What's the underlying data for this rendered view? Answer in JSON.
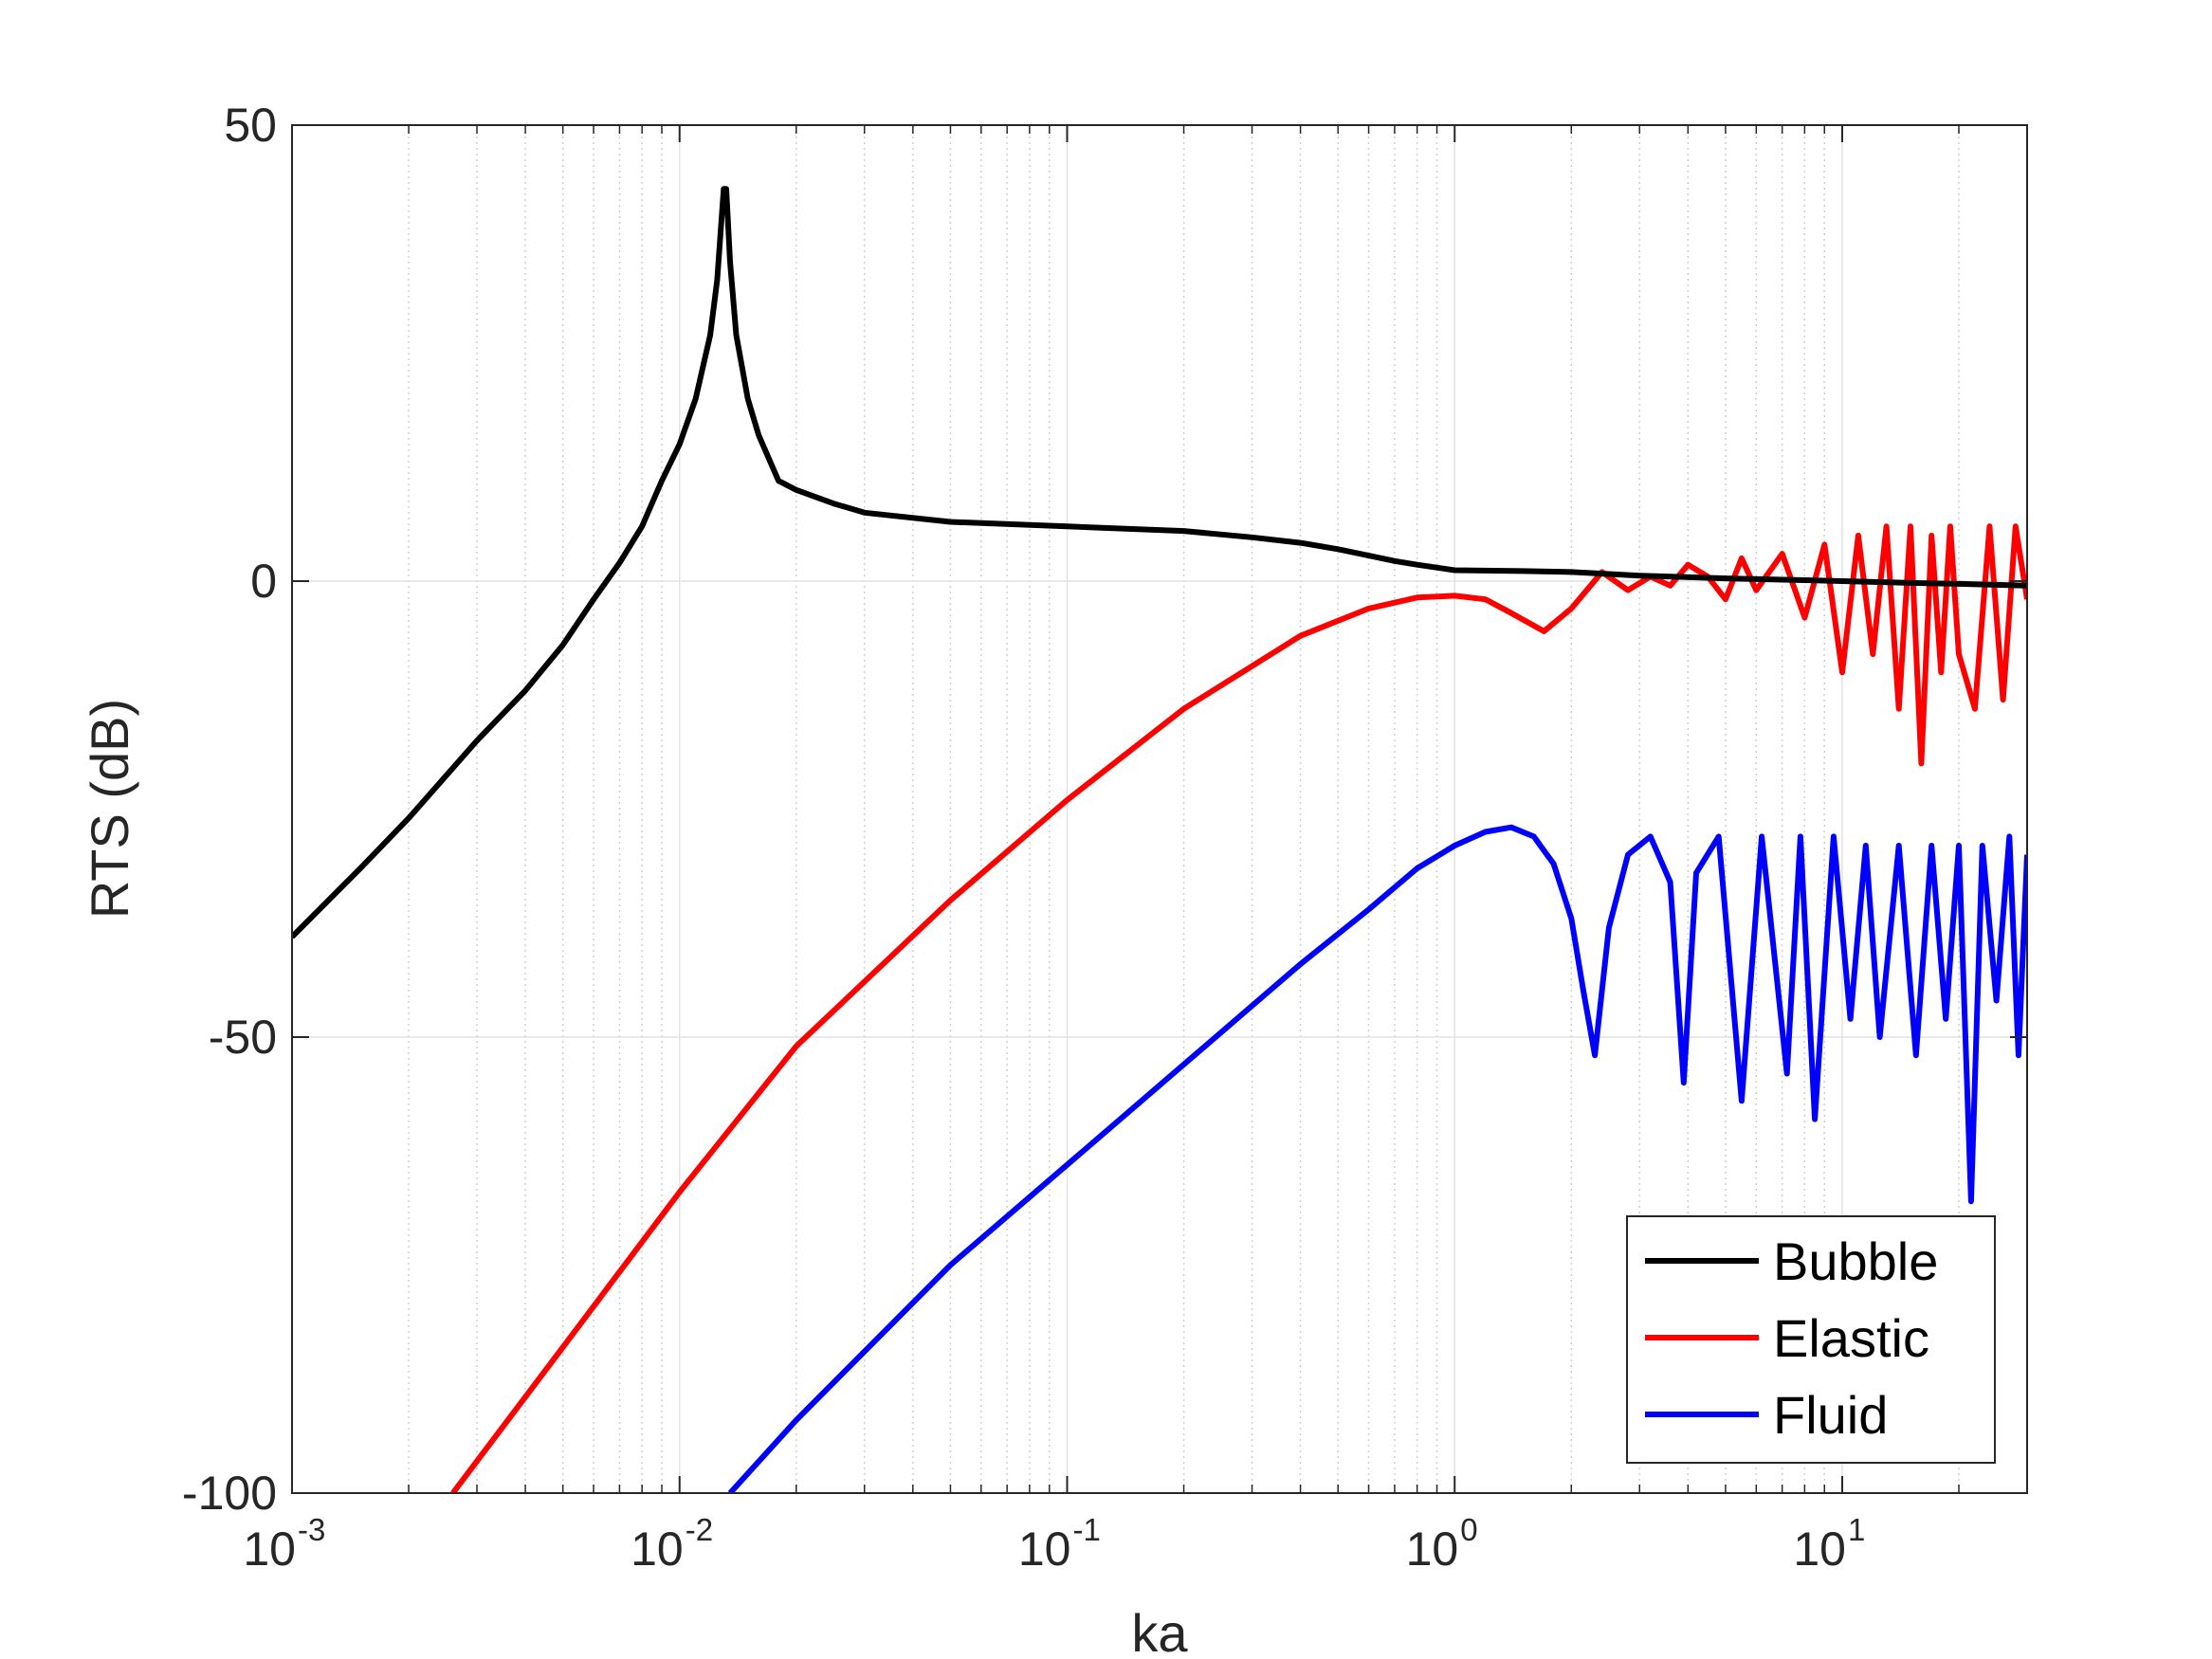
{
  "chart_data": {
    "type": "line",
    "title": "",
    "xlabel": "ka",
    "ylabel": "RTS (dB)",
    "xscale": "log",
    "xlim": [
      0.001,
      30
    ],
    "ylim": [
      -100,
      50
    ],
    "x_ticks": [
      {
        "value": 0.001,
        "base": "10",
        "exp": "-3"
      },
      {
        "value": 0.01,
        "base": "10",
        "exp": "-2"
      },
      {
        "value": 0.1,
        "base": "10",
        "exp": "-1"
      },
      {
        "value": 1,
        "base": "10",
        "exp": "0"
      },
      {
        "value": 10,
        "base": "10",
        "exp": "1"
      }
    ],
    "y_ticks": [
      {
        "value": 50,
        "label": "50"
      },
      {
        "value": 0,
        "label": "0"
      },
      {
        "value": -50,
        "label": "-50"
      },
      {
        "value": -100,
        "label": "-100"
      }
    ],
    "grid": true,
    "legend_position": "bottom-right",
    "series": [
      {
        "name": "Bubble",
        "color": "#000000",
        "x": [
          0.001,
          0.0015,
          0.002,
          0.003,
          0.004,
          0.005,
          0.006,
          0.007,
          0.008,
          0.009,
          0.01,
          0.011,
          0.012,
          0.0125,
          0.013,
          0.0132,
          0.0135,
          0.014,
          0.015,
          0.016,
          0.018,
          0.02,
          0.025,
          0.03,
          0.05,
          0.1,
          0.2,
          0.3,
          0.4,
          0.5,
          0.6,
          0.7,
          0.8,
          1.0,
          1.5,
          2.0,
          3.0,
          5.0,
          8.0,
          10,
          15,
          20,
          30
        ],
        "y": [
          -39,
          -31.5,
          -26,
          -17.5,
          -12,
          -7,
          -2,
          2,
          6,
          11,
          15,
          20,
          27,
          33,
          43,
          43,
          35,
          27,
          20,
          16,
          11,
          10,
          8.5,
          7.5,
          6.5,
          6,
          5.5,
          4.8,
          4.2,
          3.5,
          2.8,
          2.2,
          1.8,
          1.2,
          1.1,
          1.0,
          0.6,
          0.3,
          0.1,
          0.0,
          -0.2,
          -0.3,
          -0.5
        ]
      },
      {
        "name": "Elastic",
        "color": "#ff0000",
        "x": [
          0.0026,
          0.005,
          0.01,
          0.02,
          0.05,
          0.1,
          0.2,
          0.4,
          0.6,
          0.8,
          1.0,
          1.2,
          1.4,
          1.7,
          2.0,
          2.4,
          2.8,
          3.2,
          3.6,
          4.0,
          4.5,
          5.0,
          5.5,
          6.0,
          7.0,
          8.0,
          9.0,
          10,
          11,
          12,
          13,
          14,
          15,
          16,
          17,
          18,
          19,
          20,
          22,
          24,
          26,
          28,
          30
        ],
        "y": [
          -100,
          -84,
          -67,
          -51,
          -35,
          -24,
          -14,
          -6,
          -3,
          -1.8,
          -1.6,
          -2,
          -3.5,
          -5.5,
          -3,
          1.0,
          -1.0,
          0.5,
          -0.5,
          1.8,
          0.5,
          -2,
          2.5,
          -1,
          3,
          -4,
          4,
          -10,
          5,
          -8,
          6,
          -14,
          6,
          -20,
          5,
          -10,
          6,
          -8,
          -14,
          6,
          -13,
          6,
          -2
        ]
      },
      {
        "name": "Fluid",
        "color": "#0000ff",
        "x": [
          0.0135,
          0.02,
          0.05,
          0.1,
          0.2,
          0.4,
          0.6,
          0.8,
          1.0,
          1.2,
          1.4,
          1.6,
          1.8,
          2.0,
          2.15,
          2.3,
          2.5,
          2.8,
          3.2,
          3.6,
          3.9,
          4.2,
          4.8,
          5.5,
          6.2,
          7.2,
          7.8,
          8.5,
          9.5,
          10.5,
          11.5,
          12.5,
          14,
          15.5,
          17,
          18.5,
          20,
          21.5,
          23,
          25,
          27,
          28.5,
          30
        ],
        "y": [
          -100,
          -92,
          -75,
          -64,
          -53,
          -42,
          -36,
          -31.5,
          -29,
          -27.5,
          -27,
          -28,
          -31,
          -37,
          -45,
          -52,
          -38,
          -30,
          -28,
          -33,
          -55,
          -32,
          -28,
          -57,
          -28,
          -54,
          -28,
          -59,
          -28,
          -48,
          -29,
          -50,
          -29,
          -52,
          -29,
          -48,
          -29,
          -68,
          -29,
          -46,
          -28,
          -52,
          -30
        ]
      }
    ]
  }
}
